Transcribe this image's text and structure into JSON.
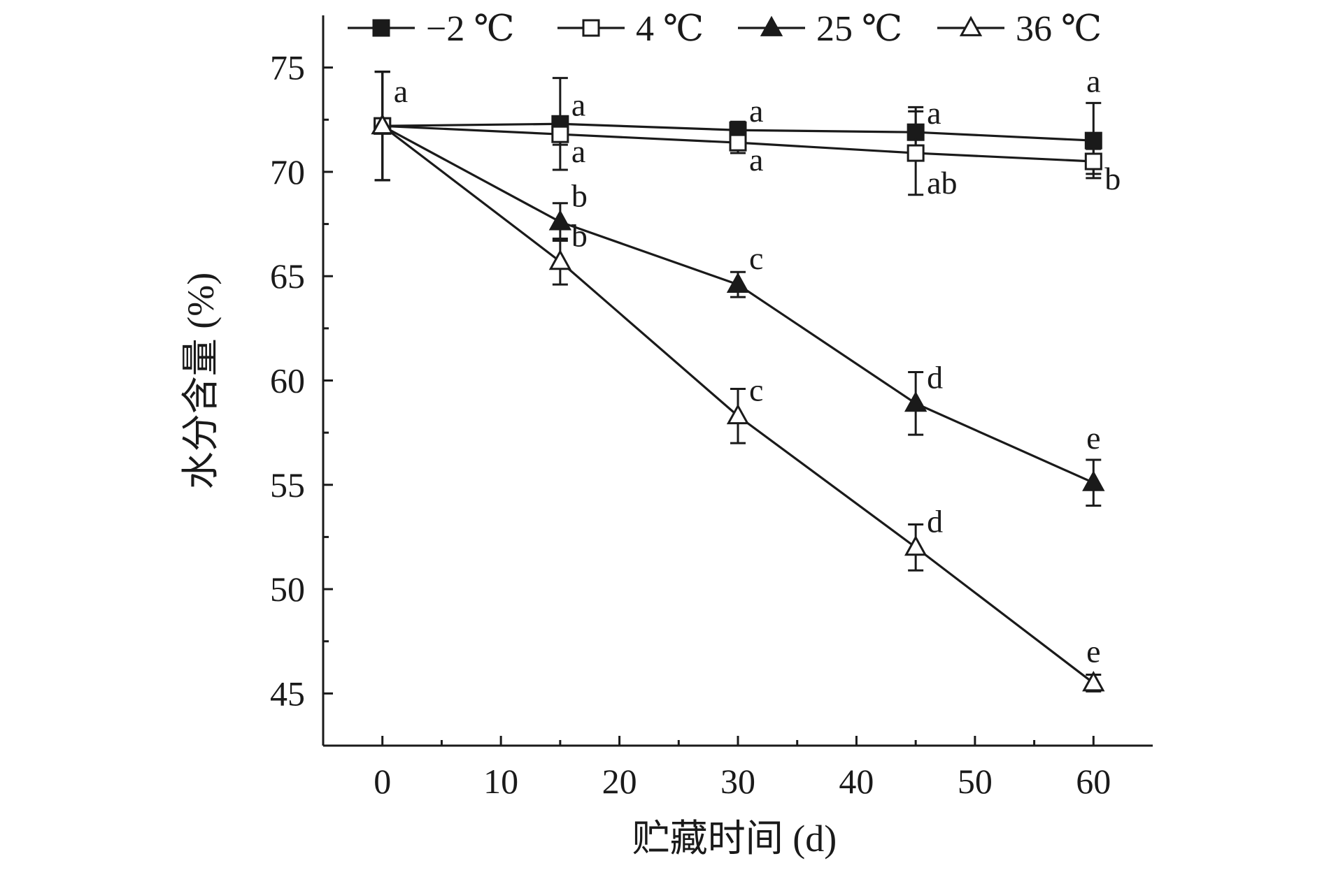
{
  "chart_data": {
    "type": "line",
    "title": "",
    "xlabel": "贮藏时间 (d)",
    "ylabel": "水分含量 (%)",
    "xlim": [
      -5,
      65
    ],
    "ylim": [
      42.5,
      77.5
    ],
    "xticks": [
      0,
      10,
      20,
      30,
      40,
      50,
      60
    ],
    "yticks": [
      45,
      50,
      55,
      60,
      65,
      70,
      75
    ],
    "x": [
      0,
      15,
      30,
      45,
      60
    ],
    "legend": "top",
    "grid": false,
    "colors": {
      "line": "#1a1a1a",
      "background": "#ffffff"
    },
    "series": [
      {
        "name": "−2 ℃",
        "marker": "filled-square",
        "values": [
          72.2,
          72.3,
          72.0,
          71.9,
          71.5
        ],
        "errors": [
          2.6,
          2.2,
          0.4,
          1.2,
          1.8
        ],
        "labels": [
          "a",
          "a",
          "a",
          "a",
          "a"
        ]
      },
      {
        "name": "4 ℃",
        "marker": "open-square",
        "values": [
          72.2,
          71.8,
          71.4,
          70.9,
          70.5
        ],
        "errors": [
          2.6,
          0.5,
          0.5,
          2.0,
          0.6
        ],
        "labels": [
          "",
          "a",
          "a",
          "ab",
          "b"
        ]
      },
      {
        "name": "25 ℃",
        "marker": "filled-triangle",
        "values": [
          72.2,
          67.6,
          64.6,
          58.9,
          55.1
        ],
        "errors": [
          2.6,
          0.9,
          0.6,
          1.5,
          1.1
        ],
        "labels": [
          "",
          "b",
          "c",
          "d",
          "e"
        ]
      },
      {
        "name": "36 ℃",
        "marker": "open-triangle",
        "values": [
          72.2,
          65.7,
          58.3,
          52.0,
          45.5
        ],
        "errors": [
          2.6,
          1.1,
          1.3,
          1.1,
          0.4
        ],
        "labels": [
          "",
          "b",
          "c",
          "d",
          "e"
        ]
      }
    ]
  }
}
